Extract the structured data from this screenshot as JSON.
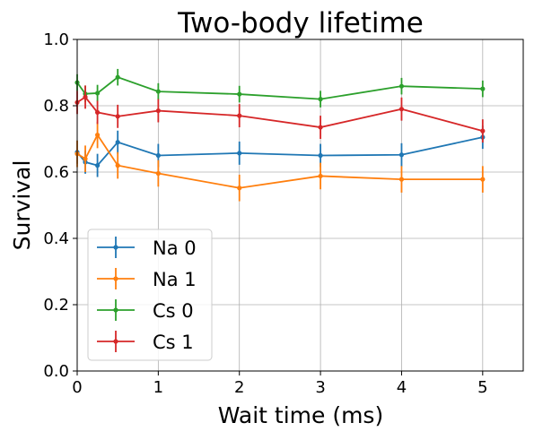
{
  "chart_data": {
    "type": "line",
    "title": "Two-body lifetime",
    "xlabel": "Wait time (ms)",
    "ylabel": "Survival",
    "xlim": [
      0,
      5.5
    ],
    "ylim": [
      0,
      1.0
    ],
    "xticks": [
      0,
      1,
      2,
      3,
      4,
      5
    ],
    "yticks": [
      0.0,
      0.2,
      0.4,
      0.6,
      0.8,
      1.0
    ],
    "xtick_labels": [
      "0",
      "1",
      "2",
      "3",
      "4",
      "5"
    ],
    "ytick_labels": [
      "0.0",
      "0.2",
      "0.4",
      "0.6",
      "0.8",
      "1.0"
    ],
    "grid": true,
    "legend_position": "lower-left",
    "series": [
      {
        "name": "Na 0",
        "color": "#1f77b4",
        "x": [
          0,
          0.1,
          0.25,
          0.5,
          1,
          2,
          3,
          4,
          5
        ],
        "y": [
          0.66,
          0.63,
          0.62,
          0.69,
          0.65,
          0.657,
          0.65,
          0.652,
          0.705
        ],
        "yerr": [
          0.035,
          0.035,
          0.035,
          0.035,
          0.035,
          0.035,
          0.035,
          0.035,
          0.035
        ]
      },
      {
        "name": "Na 1",
        "color": "#ff7f0e",
        "x": [
          0,
          0.1,
          0.25,
          0.5,
          1,
          2,
          3,
          4,
          5
        ],
        "y": [
          0.655,
          0.64,
          0.712,
          0.62,
          0.596,
          0.552,
          0.588,
          0.578,
          0.578
        ],
        "yerr": [
          0.04,
          0.04,
          0.04,
          0.04,
          0.04,
          0.04,
          0.04,
          0.04,
          0.04
        ]
      },
      {
        "name": "Cs 0",
        "color": "#2ca02c",
        "x": [
          0,
          0.1,
          0.25,
          0.5,
          1,
          2,
          3,
          4,
          5
        ],
        "y": [
          0.87,
          0.836,
          0.838,
          0.886,
          0.843,
          0.835,
          0.82,
          0.859,
          0.851
        ],
        "yerr": [
          0.025,
          0.025,
          0.025,
          0.025,
          0.025,
          0.025,
          0.025,
          0.025,
          0.025
        ]
      },
      {
        "name": "Cs 1",
        "color": "#d62728",
        "x": [
          0,
          0.1,
          0.25,
          0.5,
          1,
          2,
          3,
          4,
          5
        ],
        "y": [
          0.81,
          0.826,
          0.78,
          0.768,
          0.785,
          0.77,
          0.735,
          0.79,
          0.724
        ],
        "yerr": [
          0.035,
          0.035,
          0.035,
          0.035,
          0.035,
          0.035,
          0.035,
          0.035,
          0.035
        ]
      }
    ]
  }
}
